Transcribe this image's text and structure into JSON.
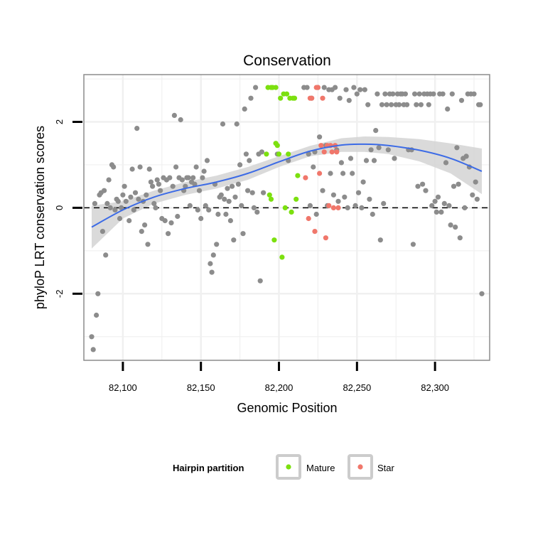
{
  "chart_data": {
    "type": "scatter",
    "title": "Conservation",
    "xlabel": "Genomic Position",
    "ylabel": "phyloP LRT conservation scores",
    "xlim": [
      82075,
      82335
    ],
    "ylim": [
      -3.55,
      3.1
    ],
    "x_ticks": [
      82100,
      82150,
      82200,
      82250,
      82300
    ],
    "x_tick_labels": [
      "82,100",
      "82,150",
      "82,200",
      "82,250",
      "82,300"
    ],
    "y_ticks": [
      -2,
      0,
      2
    ],
    "y_tick_labels": [
      "-2",
      "0",
      "2"
    ],
    "reference_line": {
      "y": 0,
      "style": "dashed"
    },
    "legend": {
      "title": "Hairpin partition",
      "position": "bottom",
      "entries": [
        {
          "label": "Mature",
          "color": "#7ce00f"
        },
        {
          "label": "Star",
          "color": "#f0776b"
        }
      ]
    },
    "colors": {
      "other": "#8c8c8c",
      "smooth": "#3c6be6",
      "band": "#d3d3d3",
      "panel_border": "#8c8c8c",
      "grid": "#f0f0f0"
    },
    "smooth": {
      "x": [
        82080,
        82100,
        82120,
        82140,
        82160,
        82180,
        82200,
        82220,
        82240,
        82255,
        82270,
        82290,
        82310,
        82330
      ],
      "y": [
        -0.45,
        -0.05,
        0.25,
        0.45,
        0.6,
        0.8,
        1.07,
        1.32,
        1.46,
        1.48,
        1.45,
        1.34,
        1.15,
        0.85
      ],
      "lo": [
        -0.95,
        -0.25,
        0.1,
        0.3,
        0.45,
        0.65,
        0.95,
        1.2,
        1.3,
        1.3,
        1.25,
        1.08,
        0.8,
        0.32
      ],
      "hi": [
        0.05,
        0.15,
        0.4,
        0.6,
        0.75,
        0.95,
        1.2,
        1.44,
        1.62,
        1.66,
        1.65,
        1.6,
        1.5,
        1.38
      ]
    },
    "series": [
      {
        "name": "Other",
        "points": [
          [
            82080,
            -3
          ],
          [
            82081,
            -3.3
          ],
          [
            82083,
            -2.5
          ],
          [
            82084,
            -2
          ],
          [
            82082,
            0.1
          ],
          [
            82085,
            0.3
          ],
          [
            82086,
            0.35
          ],
          [
            82087,
            -0.55
          ],
          [
            82088,
            0.4
          ],
          [
            82089,
            -1.1
          ],
          [
            82090,
            0.1
          ],
          [
            82091,
            0.65
          ],
          [
            82092,
            0
          ],
          [
            82093,
            1.0
          ],
          [
            82094,
            0.95
          ],
          [
            82095,
            -0.05
          ],
          [
            82096,
            0.2
          ],
          [
            82097,
            0.15
          ],
          [
            82098,
            -0.25
          ],
          [
            82099,
            0
          ],
          [
            82100,
            0.3
          ],
          [
            82101,
            0.5
          ],
          [
            82102,
            0.15
          ],
          [
            82104,
            -0.3
          ],
          [
            82105,
            0.25
          ],
          [
            82106,
            0.9
          ],
          [
            82107,
            -0.05
          ],
          [
            82108,
            0.35
          ],
          [
            82109,
            1.85
          ],
          [
            82110,
            0.2
          ],
          [
            82111,
            0.95
          ],
          [
            82112,
            -0.55
          ],
          [
            82113,
            0.15
          ],
          [
            82114,
            -0.4
          ],
          [
            82115,
            0.3
          ],
          [
            82116,
            -0.85
          ],
          [
            82117,
            0.9
          ],
          [
            82118,
            0.6
          ],
          [
            82119,
            0.5
          ],
          [
            82120,
            0.1
          ],
          [
            82121,
            0
          ],
          [
            82122,
            0.65
          ],
          [
            82123,
            0.55
          ],
          [
            82124,
            0.4
          ],
          [
            82125,
            -0.25
          ],
          [
            82126,
            0.7
          ],
          [
            82127,
            -0.3
          ],
          [
            82128,
            0.65
          ],
          [
            82129,
            -0.6
          ],
          [
            82130,
            0.7
          ],
          [
            82131,
            -0.35
          ],
          [
            82132,
            0.5
          ],
          [
            82133,
            2.15
          ],
          [
            82134,
            0.95
          ],
          [
            82135,
            -0.2
          ],
          [
            82136,
            0.7
          ],
          [
            82137,
            2.05
          ],
          [
            82138,
            0.65
          ],
          [
            82139,
            0.4
          ],
          [
            82140,
            0.5
          ],
          [
            82141,
            0.7
          ],
          [
            82142,
            0.7
          ],
          [
            82143,
            0.05
          ],
          [
            82144,
            0.6
          ],
          [
            82145,
            0.7
          ],
          [
            82146,
            0.55
          ],
          [
            82147,
            0.95
          ],
          [
            82148,
            -0.05
          ],
          [
            82149,
            0.4
          ],
          [
            82150,
            -0.25
          ],
          [
            82151,
            0.7
          ],
          [
            82152,
            0.85
          ],
          [
            82153,
            0.05
          ],
          [
            82154,
            1.1
          ],
          [
            82155,
            -0.05
          ],
          [
            82156,
            -1.3
          ],
          [
            82157,
            -1.5
          ],
          [
            82158,
            -1.1
          ],
          [
            82159,
            0.55
          ],
          [
            82160,
            -0.85
          ],
          [
            82161,
            -0.15
          ],
          [
            82162,
            0.25
          ],
          [
            82163,
            0.3
          ],
          [
            82164,
            1.95
          ],
          [
            82165,
            0.2
          ],
          [
            82166,
            -0.15
          ],
          [
            82167,
            0.45
          ],
          [
            82168,
            0.15
          ],
          [
            82169,
            -0.3
          ],
          [
            82170,
            0.5
          ],
          [
            82171,
            -0.75
          ],
          [
            82172,
            0.25
          ],
          [
            82173,
            1.95
          ],
          [
            82174,
            0.55
          ],
          [
            82175,
            1.0
          ],
          [
            82176,
            0.05
          ],
          [
            82177,
            -0.6
          ],
          [
            82178,
            2.3
          ],
          [
            82179,
            1.25
          ],
          [
            82180,
            0.4
          ],
          [
            82181,
            1.1
          ],
          [
            82182,
            2.55
          ],
          [
            82183,
            0.35
          ],
          [
            82184,
            0
          ],
          [
            82185,
            2.8
          ],
          [
            82186,
            -0.1
          ],
          [
            82187,
            1.25
          ],
          [
            82188,
            -1.7
          ],
          [
            82189,
            1.3
          ],
          [
            82190,
            0.35
          ],
          [
            82199,
            1.25
          ],
          [
            82206,
            1.1
          ],
          [
            82216,
            2.8
          ],
          [
            82218,
            2.8
          ],
          [
            82219,
            1.25
          ],
          [
            82220,
            0.05
          ],
          [
            82221,
            2.55
          ],
          [
            82222,
            0.95
          ],
          [
            82223,
            1.3
          ],
          [
            82224,
            -0.15
          ],
          [
            82225,
            2.8
          ],
          [
            82226,
            1.65
          ],
          [
            82228,
            0.4
          ],
          [
            82229,
            2.8
          ],
          [
            82230,
            1.45
          ],
          [
            82231,
            0.05
          ],
          [
            82232,
            2.75
          ],
          [
            82233,
            0.8
          ],
          [
            82234,
            2.75
          ],
          [
            82235,
            0.3
          ],
          [
            82236,
            2.8
          ],
          [
            82237,
            1.35
          ],
          [
            82238,
            0.15
          ],
          [
            82239,
            2.55
          ],
          [
            82240,
            1.05
          ],
          [
            82241,
            0.8
          ],
          [
            82242,
            0.25
          ],
          [
            82243,
            2.75
          ],
          [
            82244,
            0
          ],
          [
            82245,
            2.5
          ],
          [
            82246,
            1.15
          ],
          [
            82247,
            0.8
          ],
          [
            82248,
            2.8
          ],
          [
            82249,
            0.05
          ],
          [
            82250,
            2.65
          ],
          [
            82251,
            0.35
          ],
          [
            82252,
            2.75
          ],
          [
            82253,
            0
          ],
          [
            82254,
            0.6
          ],
          [
            82255,
            2.75
          ],
          [
            82256,
            1.1
          ],
          [
            82257,
            2.4
          ],
          [
            82258,
            0.2
          ],
          [
            82259,
            1.35
          ],
          [
            82260,
            -0.15
          ],
          [
            82261,
            1.1
          ],
          [
            82262,
            1.8
          ],
          [
            82263,
            2.65
          ],
          [
            82264,
            1.4
          ],
          [
            82265,
            -0.75
          ],
          [
            82266,
            2.4
          ],
          [
            82267,
            0.1
          ],
          [
            82268,
            2.65
          ],
          [
            82269,
            2.4
          ],
          [
            82270,
            1.35
          ],
          [
            82271,
            2.65
          ],
          [
            82272,
            2.4
          ],
          [
            82273,
            2.65
          ],
          [
            82274,
            1.15
          ],
          [
            82275,
            2.4
          ],
          [
            82276,
            2.65
          ],
          [
            82277,
            2.4
          ],
          [
            82278,
            2.65
          ],
          [
            82279,
            2.65
          ],
          [
            82280,
            2.4
          ],
          [
            82281,
            2.65
          ],
          [
            82282,
            2.4
          ],
          [
            82283,
            1.35
          ],
          [
            82285,
            1.35
          ],
          [
            82286,
            -0.85
          ],
          [
            82287,
            2.65
          ],
          [
            82288,
            2.4
          ],
          [
            82289,
            0.5
          ],
          [
            82290,
            2.65
          ],
          [
            82291,
            2.4
          ],
          [
            82292,
            0.55
          ],
          [
            82293,
            2.65
          ],
          [
            82294,
            0.4
          ],
          [
            82295,
            2.65
          ],
          [
            82296,
            2.4
          ],
          [
            82297,
            2.65
          ],
          [
            82298,
            0.05
          ],
          [
            82299,
            2.65
          ],
          [
            82300,
            0.15
          ],
          [
            82301,
            -0.1
          ],
          [
            82302,
            0.25
          ],
          [
            82303,
            2.65
          ],
          [
            82304,
            -0.1
          ],
          [
            82305,
            2.65
          ],
          [
            82306,
            0.1
          ],
          [
            82307,
            1.05
          ],
          [
            82308,
            2.3
          ],
          [
            82309,
            0.05
          ],
          [
            82310,
            -0.4
          ],
          [
            82311,
            2.65
          ],
          [
            82312,
            0.5
          ],
          [
            82313,
            -0.45
          ],
          [
            82314,
            1.4
          ],
          [
            82315,
            0.55
          ],
          [
            82316,
            -0.7
          ],
          [
            82317,
            2.5
          ],
          [
            82318,
            1.15
          ],
          [
            82319,
            0
          ],
          [
            82320,
            1.2
          ],
          [
            82321,
            2.65
          ],
          [
            82322,
            0.95
          ],
          [
            82323,
            2.65
          ],
          [
            82324,
            0.3
          ],
          [
            82325,
            2.65
          ],
          [
            82326,
            0.6
          ],
          [
            82327,
            0.2
          ],
          [
            82328,
            2.4
          ],
          [
            82329,
            2.4
          ],
          [
            82330,
            -2.0
          ]
        ]
      },
      {
        "name": "Mature",
        "points": [
          [
            82192,
            1.25
          ],
          [
            82193,
            2.8
          ],
          [
            82194,
            0.3
          ],
          [
            82195,
            2.8
          ],
          [
            82195,
            0.2
          ],
          [
            82196,
            2.8
          ],
          [
            82197,
            -0.75
          ],
          [
            82198,
            2.8
          ],
          [
            82198,
            1.5
          ],
          [
            82199,
            1.45
          ],
          [
            82200,
            1.25
          ],
          [
            82201,
            2.55
          ],
          [
            82202,
            -1.15
          ],
          [
            82203,
            2.65
          ],
          [
            82204,
            0
          ],
          [
            82205,
            2.65
          ],
          [
            82206,
            1.25
          ],
          [
            82207,
            2.55
          ],
          [
            82208,
            -0.1
          ],
          [
            82209,
            2.55
          ],
          [
            82210,
            2.55
          ],
          [
            82211,
            0.2
          ],
          [
            82212,
            0.75
          ]
        ]
      },
      {
        "name": "Star",
        "points": [
          [
            82217,
            0.7
          ],
          [
            82219,
            -0.25
          ],
          [
            82220,
            2.55
          ],
          [
            82221,
            2.55
          ],
          [
            82223,
            -0.55
          ],
          [
            82224,
            2.8
          ],
          [
            82225,
            2.8
          ],
          [
            82226,
            0.8
          ],
          [
            82227,
            1.45
          ],
          [
            82228,
            2.55
          ],
          [
            82229,
            1.3
          ],
          [
            82230,
            -0.7
          ],
          [
            82231,
            1.45
          ],
          [
            82232,
            0.05
          ],
          [
            82233,
            1.45
          ],
          [
            82234,
            1.3
          ],
          [
            82235,
            0
          ],
          [
            82236,
            1.45
          ],
          [
            82237,
            1.3
          ],
          [
            82238,
            0
          ]
        ]
      }
    ]
  }
}
